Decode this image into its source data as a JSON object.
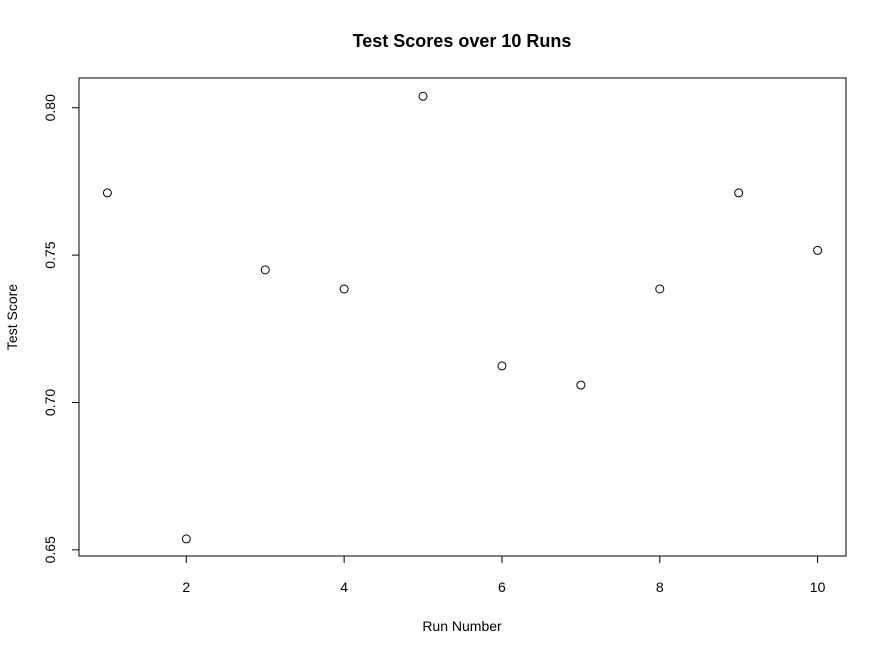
{
  "chart_data": {
    "type": "scatter",
    "title": "Test Scores over 10 Runs",
    "xlabel": "Run Number",
    "ylabel": "Test Score",
    "x": [
      1,
      2,
      3,
      4,
      5,
      6,
      7,
      8,
      9,
      10
    ],
    "y": [
      0.7711,
      0.6537,
      0.745,
      0.7385,
      0.8039,
      0.7124,
      0.7059,
      0.7385,
      0.7711,
      0.7516
    ],
    "xlim": [
      0.64,
      10.36
    ],
    "ylim": [
      0.6479,
      0.8101
    ],
    "xticks": [
      2,
      4,
      6,
      8,
      10
    ],
    "xtick_labels": [
      "2",
      "4",
      "6",
      "8",
      "10"
    ],
    "yticks": [
      0.65,
      0.7,
      0.75,
      0.8
    ],
    "ytick_labels": [
      "0.65",
      "0.70",
      "0.75",
      "0.80"
    ],
    "grid": false,
    "marker": "open-circle",
    "point_color": "#000000"
  }
}
